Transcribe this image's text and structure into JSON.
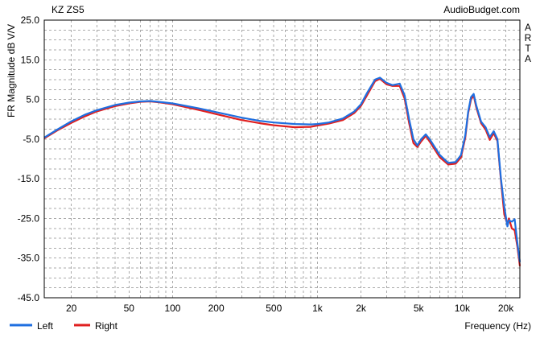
{
  "chart_data": {
    "type": "line",
    "title": "KZ ZS5",
    "watermark": "AudioBudget.com",
    "side_label": [
      "A",
      "R",
      "T",
      "A"
    ],
    "xlabel": "Frequency (Hz)",
    "ylabel": "FR Magnitude dB V/V",
    "x_scale": "log",
    "xlim": [
      13,
      25000
    ],
    "ylim": [
      -45,
      25
    ],
    "grid": true,
    "legend_position": "bottom-left",
    "x_ticks": [
      {
        "value": 20,
        "label": "20"
      },
      {
        "value": 50,
        "label": "50"
      },
      {
        "value": 100,
        "label": "100"
      },
      {
        "value": 200,
        "label": "200"
      },
      {
        "value": 500,
        "label": "500"
      },
      {
        "value": 1000,
        "label": "1k"
      },
      {
        "value": 2000,
        "label": "2k"
      },
      {
        "value": 5000,
        "label": "5k"
      },
      {
        "value": 10000,
        "label": "10k"
      },
      {
        "value": 20000,
        "label": "20k"
      }
    ],
    "y_ticks": [
      {
        "value": 25,
        "label": "25.0"
      },
      {
        "value": 15,
        "label": "15.0"
      },
      {
        "value": 5,
        "label": "5.0"
      },
      {
        "value": -5,
        "label": "-5.0"
      },
      {
        "value": -15,
        "label": "-15.0"
      },
      {
        "value": -25,
        "label": "-25.0"
      },
      {
        "value": -35,
        "label": "-35.0"
      },
      {
        "value": -45,
        "label": "-45.0"
      }
    ],
    "series": [
      {
        "name": "Left",
        "color": "#1f6fe0",
        "points": [
          [
            13,
            -4.6
          ],
          [
            16,
            -2.6
          ],
          [
            20,
            -0.5
          ],
          [
            25,
            1.2
          ],
          [
            30,
            2.3
          ],
          [
            40,
            3.6
          ],
          [
            50,
            4.2
          ],
          [
            60,
            4.5
          ],
          [
            70,
            4.6
          ],
          [
            80,
            4.4
          ],
          [
            100,
            4.0
          ],
          [
            150,
            2.8
          ],
          [
            200,
            1.8
          ],
          [
            300,
            0.4
          ],
          [
            400,
            -0.4
          ],
          [
            500,
            -0.8
          ],
          [
            700,
            -1.2
          ],
          [
            900,
            -1.3
          ],
          [
            1000,
            -1.2
          ],
          [
            1200,
            -0.8
          ],
          [
            1500,
            0.2
          ],
          [
            1800,
            2.0
          ],
          [
            2000,
            3.8
          ],
          [
            2200,
            6.6
          ],
          [
            2500,
            10.0
          ],
          [
            2700,
            10.5
          ],
          [
            3000,
            9.2
          ],
          [
            3300,
            8.6
          ],
          [
            3700,
            9.0
          ],
          [
            4000,
            6.0
          ],
          [
            4300,
            0.0
          ],
          [
            4600,
            -5.0
          ],
          [
            4900,
            -6.6
          ],
          [
            5200,
            -5.0
          ],
          [
            5600,
            -3.8
          ],
          [
            6000,
            -5.2
          ],
          [
            7000,
            -9.0
          ],
          [
            8000,
            -11.0
          ],
          [
            9000,
            -10.8
          ],
          [
            9800,
            -9.0
          ],
          [
            10500,
            -4.0
          ],
          [
            11000,
            2.0
          ],
          [
            11500,
            5.6
          ],
          [
            12000,
            6.4
          ],
          [
            12500,
            3.5
          ],
          [
            13500,
            -0.6
          ],
          [
            14500,
            -2.0
          ],
          [
            15500,
            -4.5
          ],
          [
            16500,
            -3.0
          ],
          [
            17500,
            -5.0
          ],
          [
            18500,
            -15.0
          ],
          [
            19500,
            -22.0
          ],
          [
            20500,
            -27.0
          ],
          [
            21000,
            -25.5
          ],
          [
            22000,
            -25.8
          ],
          [
            23000,
            -25.2
          ],
          [
            24000,
            -31.0
          ],
          [
            25000,
            -36.0
          ]
        ]
      },
      {
        "name": "Right",
        "color": "#e02020",
        "points": [
          [
            13,
            -4.8
          ],
          [
            16,
            -2.8
          ],
          [
            20,
            -0.9
          ],
          [
            25,
            0.8
          ],
          [
            30,
            2.0
          ],
          [
            40,
            3.3
          ],
          [
            50,
            4.0
          ],
          [
            60,
            4.4
          ],
          [
            70,
            4.5
          ],
          [
            80,
            4.3
          ],
          [
            100,
            3.8
          ],
          [
            150,
            2.4
          ],
          [
            200,
            1.3
          ],
          [
            300,
            -0.2
          ],
          [
            400,
            -1.0
          ],
          [
            500,
            -1.5
          ],
          [
            700,
            -2.0
          ],
          [
            900,
            -1.9
          ],
          [
            1000,
            -1.6
          ],
          [
            1200,
            -1.1
          ],
          [
            1500,
            -0.2
          ],
          [
            1800,
            1.6
          ],
          [
            2000,
            3.4
          ],
          [
            2200,
            6.0
          ],
          [
            2500,
            9.6
          ],
          [
            2700,
            10.2
          ],
          [
            3000,
            8.8
          ],
          [
            3300,
            8.4
          ],
          [
            3700,
            8.4
          ],
          [
            4000,
            5.2
          ],
          [
            4300,
            -1.0
          ],
          [
            4600,
            -6.0
          ],
          [
            4900,
            -7.0
          ],
          [
            5200,
            -5.6
          ],
          [
            5600,
            -4.2
          ],
          [
            6000,
            -5.8
          ],
          [
            7000,
            -9.6
          ],
          [
            8000,
            -11.4
          ],
          [
            9000,
            -11.2
          ],
          [
            9800,
            -9.6
          ],
          [
            10500,
            -4.6
          ],
          [
            11000,
            1.6
          ],
          [
            11500,
            5.0
          ],
          [
            12000,
            6.0
          ],
          [
            12500,
            3.0
          ],
          [
            13500,
            -1.0
          ],
          [
            14500,
            -2.6
          ],
          [
            15500,
            -5.2
          ],
          [
            16500,
            -3.5
          ],
          [
            17500,
            -5.5
          ],
          [
            18500,
            -15.5
          ],
          [
            19500,
            -24.0
          ],
          [
            20500,
            -26.5
          ],
          [
            21000,
            -25.0
          ],
          [
            22000,
            -27.5
          ],
          [
            23000,
            -28.0
          ],
          [
            24000,
            -32.0
          ],
          [
            25000,
            -37.0
          ]
        ]
      }
    ]
  }
}
